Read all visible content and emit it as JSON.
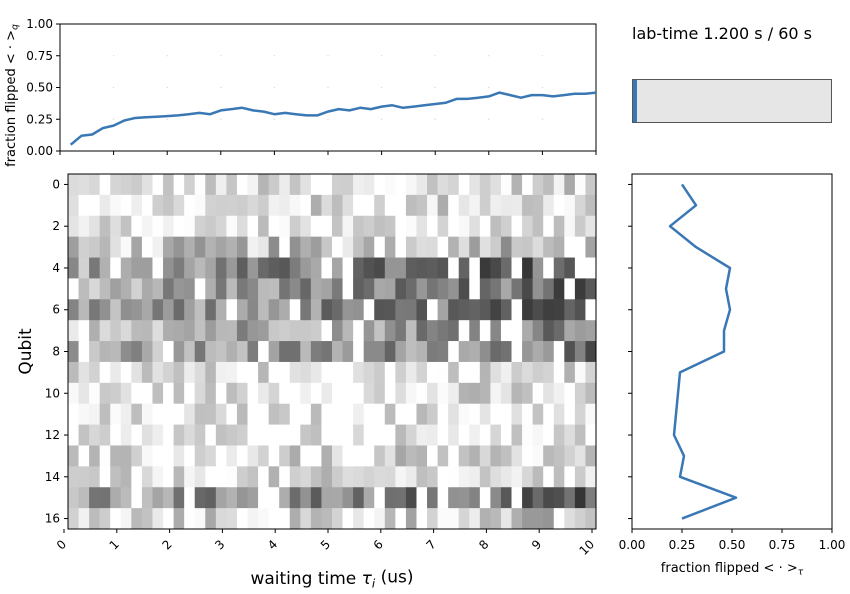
{
  "lab_time": {
    "text": "lab-time 1.200 s / 60 s",
    "progress_fraction": 0.02,
    "fill_color": "#3a78b5"
  },
  "chart_data": [
    {
      "id": "top",
      "type": "line",
      "ylabel": "fraction flipped $<\\cdot>_q$",
      "xlim": [
        0,
        10
      ],
      "ylim": [
        0,
        1
      ],
      "yticks": [
        "0.00",
        "0.25",
        "0.50",
        "0.75",
        "1.00"
      ],
      "grid": false,
      "color": "#3a78b5",
      "x": [
        0.2,
        0.4,
        0.6,
        0.8,
        1.0,
        1.2,
        1.4,
        1.6,
        1.8,
        2.0,
        2.2,
        2.4,
        2.6,
        2.8,
        3.0,
        3.2,
        3.4,
        3.6,
        3.8,
        4.0,
        4.2,
        4.4,
        4.6,
        4.8,
        5.0,
        5.2,
        5.4,
        5.6,
        5.8,
        6.0,
        6.2,
        6.4,
        6.6,
        6.8,
        7.0,
        7.2,
        7.4,
        7.6,
        7.8,
        8.0,
        8.2,
        8.4,
        8.6,
        8.8,
        9.0,
        9.2,
        9.4,
        9.6,
        9.8,
        10.0
      ],
      "y": [
        0.05,
        0.12,
        0.13,
        0.18,
        0.2,
        0.24,
        0.26,
        0.265,
        0.27,
        0.275,
        0.28,
        0.29,
        0.3,
        0.29,
        0.32,
        0.33,
        0.34,
        0.32,
        0.31,
        0.29,
        0.3,
        0.29,
        0.28,
        0.28,
        0.31,
        0.33,
        0.32,
        0.34,
        0.33,
        0.35,
        0.36,
        0.34,
        0.35,
        0.36,
        0.37,
        0.38,
        0.41,
        0.41,
        0.42,
        0.43,
        0.46,
        0.44,
        0.42,
        0.44,
        0.44,
        0.43,
        0.44,
        0.45,
        0.45,
        0.46
      ]
    },
    {
      "id": "heatmap",
      "type": "heatmap",
      "xlabel": "waiting time $\\tau_i$ (us)",
      "ylabel": "Qubit",
      "xlim": [
        0,
        10
      ],
      "xticks": [
        "0",
        "1",
        "2",
        "3",
        "4",
        "5",
        "6",
        "7",
        "8",
        "9",
        "10"
      ],
      "yticks": [
        "0",
        "2",
        "4",
        "6",
        "8",
        "10",
        "12",
        "14",
        "16"
      ],
      "n_rows": 17,
      "n_cols": 50,
      "value_range": [
        0,
        1
      ],
      "colormap": "grey (0 white, 1 black)",
      "row_levels": [
        0.12,
        0.15,
        0.12,
        0.3,
        0.55,
        0.5,
        0.52,
        0.45,
        0.45,
        0.12,
        0.12,
        0.1,
        0.1,
        0.15,
        0.13,
        0.55,
        0.2
      ],
      "column_trend": "fraction increases with waiting time"
    },
    {
      "id": "right",
      "type": "line",
      "xlabel": "fraction flipped $<\\cdot>_\\tau$",
      "xlim": [
        0,
        1
      ],
      "xticks": [
        "0.00",
        "0.25",
        "0.50",
        "0.75",
        "1.00"
      ],
      "color": "#3a78b5",
      "qubits": [
        0,
        1,
        2,
        3,
        4,
        5,
        6,
        7,
        8,
        9,
        10,
        11,
        12,
        13,
        14,
        15,
        16
      ],
      "values": [
        0.25,
        0.32,
        0.19,
        0.32,
        0.49,
        0.47,
        0.49,
        0.46,
        0.46,
        0.24,
        0.23,
        0.22,
        0.21,
        0.26,
        0.24,
        0.52,
        0.25
      ]
    }
  ]
}
